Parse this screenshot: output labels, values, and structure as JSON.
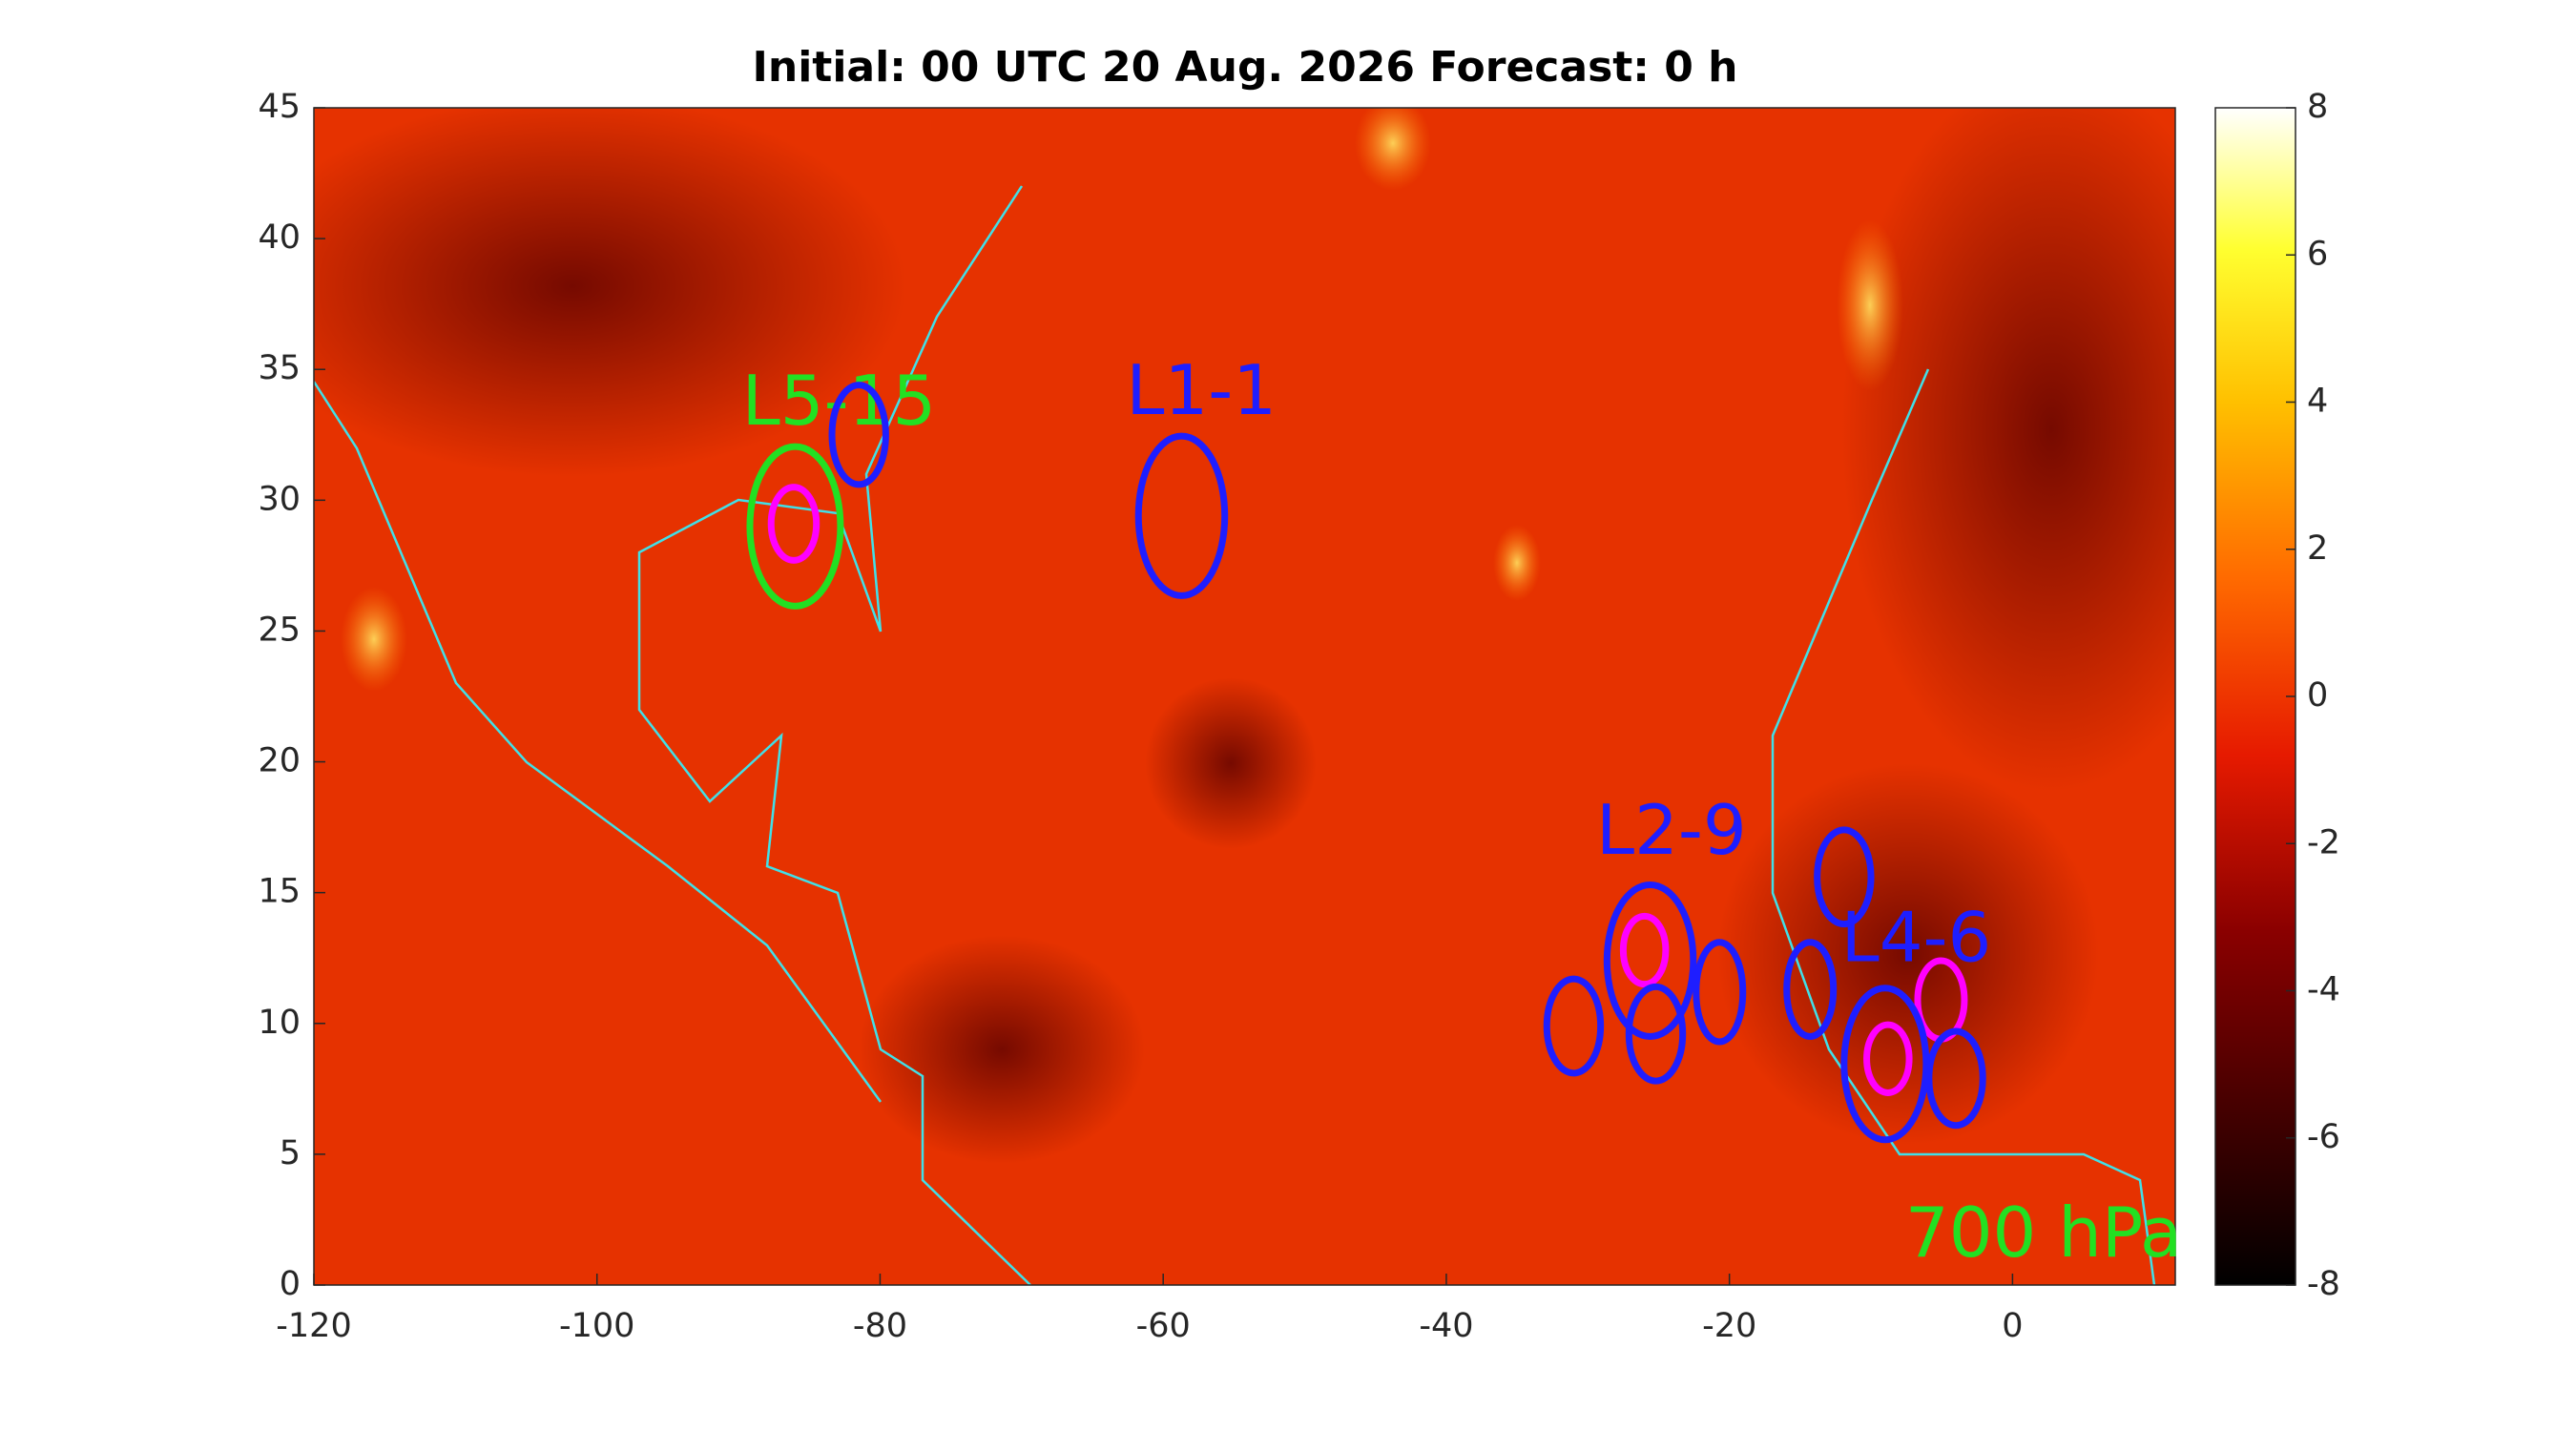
{
  "chart_data": {
    "type": "map",
    "title": "Initial: 00 UTC 20 Aug. 2026 Forecast: 0 h",
    "xlim": [
      -120,
      11.5
    ],
    "ylim": [
      0,
      45
    ],
    "xticks": [
      -120,
      -100,
      -80,
      -60,
      -40,
      -20,
      0
    ],
    "yticks": [
      0,
      5,
      10,
      15,
      20,
      25,
      30,
      35,
      40,
      45
    ],
    "colorbar": {
      "clim": [
        -8,
        8
      ],
      "ticks": [
        -8,
        -6,
        -4,
        -2,
        0,
        2,
        4,
        6,
        8
      ]
    },
    "annotations": [
      {
        "text": "L5-15",
        "lon": -82.9,
        "lat": 33.6,
        "color": "#22e022"
      },
      {
        "text": "L1-1",
        "lon": -57.3,
        "lat": 34.0,
        "color": "#1e1eff"
      },
      {
        "text": "L2-9",
        "lon": -24.1,
        "lat": 17.2,
        "color": "#1e1eff"
      },
      {
        "text": "L4-6",
        "lon": -6.8,
        "lat": 13.1,
        "color": "#1e1eff"
      },
      {
        "text": "700 hPa",
        "lon": 2.2,
        "lat": 1.8,
        "color": "#22e022"
      }
    ],
    "ellipses": [
      {
        "lon": -86.0,
        "lat": 29.0,
        "rx": 3.2,
        "ry": 3.05,
        "color": "#22e022"
      },
      {
        "lon": -86.1,
        "lat": 29.1,
        "rx": 1.6,
        "ry": 1.4,
        "color": "#ff00ff"
      },
      {
        "lon": -81.5,
        "lat": 32.5,
        "rx": 1.9,
        "ry": 1.9,
        "color": "#1e1eff"
      },
      {
        "lon": -58.7,
        "lat": 29.4,
        "rx": 3.05,
        "ry": 3.05,
        "color": "#1e1eff"
      },
      {
        "lon": -25.6,
        "lat": 12.4,
        "rx": 3.05,
        "ry": 2.9,
        "color": "#1e1eff"
      },
      {
        "lon": -26.0,
        "lat": 12.8,
        "rx": 1.5,
        "ry": 1.3,
        "color": "#ff00ff"
      },
      {
        "lon": -20.7,
        "lat": 11.2,
        "rx": 1.65,
        "ry": 1.9,
        "color": "#1e1eff"
      },
      {
        "lon": -31.0,
        "lat": 9.9,
        "rx": 1.9,
        "ry": 1.8,
        "color": "#1e1eff"
      },
      {
        "lon": -25.2,
        "lat": 9.6,
        "rx": 1.9,
        "ry": 1.8,
        "color": "#1e1eff"
      },
      {
        "lon": -11.9,
        "lat": 15.6,
        "rx": 1.9,
        "ry": 1.8,
        "color": "#1e1eff"
      },
      {
        "lon": -14.3,
        "lat": 11.3,
        "rx": 1.65,
        "ry": 1.8,
        "color": "#1e1eff"
      },
      {
        "lon": -5.05,
        "lat": 10.9,
        "rx": 1.65,
        "ry": 1.5,
        "color": "#ff00ff"
      },
      {
        "lon": -9.0,
        "lat": 8.45,
        "rx": 2.9,
        "ry": 2.9,
        "color": "#1e1eff"
      },
      {
        "lon": -8.8,
        "lat": 8.65,
        "rx": 1.5,
        "ry": 1.3,
        "color": "#ff00ff"
      },
      {
        "lon": -4.0,
        "lat": 7.9,
        "rx": 1.9,
        "ry": 1.8,
        "color": "#1e1eff"
      }
    ]
  }
}
